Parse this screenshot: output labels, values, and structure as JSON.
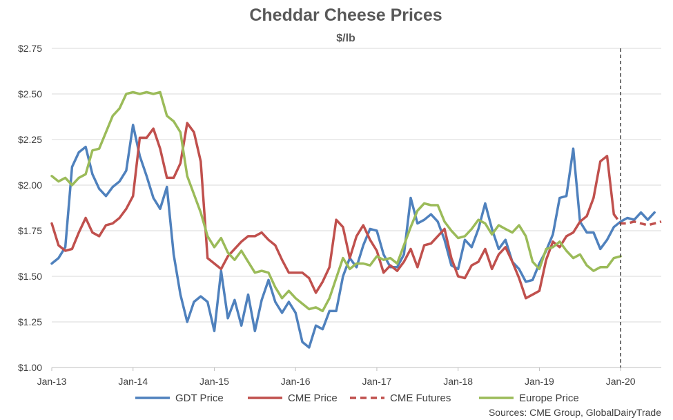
{
  "chart_data": {
    "type": "line",
    "title": "Cheddar Cheese Prices",
    "subtitle": "$/lb",
    "source": "Sources:  CME Group, GlobalDairyTrade",
    "x_tick_labels": [
      "Jan-13",
      "Jan-14",
      "Jan-15",
      "Jan-16",
      "Jan-17",
      "Jan-18",
      "Jan-19",
      "Jan-20"
    ],
    "y_tick_labels": [
      "$1.00",
      "$1.25",
      "$1.50",
      "$1.75",
      "$2.00",
      "$2.25",
      "$2.50",
      "$2.75"
    ],
    "ylim": [
      1.0,
      2.75
    ],
    "xlim": [
      "2013-01",
      "2020-07"
    ],
    "grid": "horizontal",
    "legend_position": "bottom",
    "forecast_marker": "2020-01",
    "series": [
      {
        "name": "GDT Price",
        "color": "#4f81bd",
        "style": "solid",
        "points": [
          [
            "2013-01",
            1.57
          ],
          [
            "2013-02",
            1.6
          ],
          [
            "2013-03",
            1.66
          ],
          [
            "2013-04",
            2.1
          ],
          [
            "2013-05",
            2.18
          ],
          [
            "2013-06",
            2.21
          ],
          [
            "2013-07",
            2.06
          ],
          [
            "2013-08",
            1.98
          ],
          [
            "2013-09",
            1.94
          ],
          [
            "2013-10",
            1.99
          ],
          [
            "2013-11",
            2.02
          ],
          [
            "2013-12",
            2.08
          ],
          [
            "2014-01",
            2.33
          ],
          [
            "2014-02",
            2.16
          ],
          [
            "2014-03",
            2.05
          ],
          [
            "2014-04",
            1.93
          ],
          [
            "2014-05",
            1.87
          ],
          [
            "2014-06",
            1.99
          ],
          [
            "2014-07",
            1.62
          ],
          [
            "2014-08",
            1.4
          ],
          [
            "2014-09",
            1.25
          ],
          [
            "2014-10",
            1.36
          ],
          [
            "2014-11",
            1.39
          ],
          [
            "2014-12",
            1.36
          ],
          [
            "2015-01",
            1.2
          ],
          [
            "2015-02",
            1.53
          ],
          [
            "2015-03",
            1.27
          ],
          [
            "2015-04",
            1.37
          ],
          [
            "2015-05",
            1.23
          ],
          [
            "2015-06",
            1.4
          ],
          [
            "2015-07",
            1.2
          ],
          [
            "2015-08",
            1.37
          ],
          [
            "2015-09",
            1.48
          ],
          [
            "2015-10",
            1.36
          ],
          [
            "2015-11",
            1.3
          ],
          [
            "2015-12",
            1.36
          ],
          [
            "2016-01",
            1.3
          ],
          [
            "2016-02",
            1.14
          ],
          [
            "2016-03",
            1.11
          ],
          [
            "2016-04",
            1.23
          ],
          [
            "2016-05",
            1.21
          ],
          [
            "2016-06",
            1.31
          ],
          [
            "2016-07",
            1.31
          ],
          [
            "2016-08",
            1.5
          ],
          [
            "2016-09",
            1.6
          ],
          [
            "2016-10",
            1.55
          ],
          [
            "2016-11",
            1.67
          ],
          [
            "2016-12",
            1.76
          ],
          [
            "2017-01",
            1.75
          ],
          [
            "2017-02",
            1.62
          ],
          [
            "2017-03",
            1.55
          ],
          [
            "2017-04",
            1.55
          ],
          [
            "2017-05",
            1.62
          ],
          [
            "2017-06",
            1.93
          ],
          [
            "2017-07",
            1.79
          ],
          [
            "2017-08",
            1.81
          ],
          [
            "2017-09",
            1.84
          ],
          [
            "2017-10",
            1.8
          ],
          [
            "2017-11",
            1.7
          ],
          [
            "2017-12",
            1.56
          ],
          [
            "2018-01",
            1.54
          ],
          [
            "2018-02",
            1.7
          ],
          [
            "2018-03",
            1.66
          ],
          [
            "2018-04",
            1.76
          ],
          [
            "2018-05",
            1.9
          ],
          [
            "2018-06",
            1.76
          ],
          [
            "2018-07",
            1.65
          ],
          [
            "2018-08",
            1.7
          ],
          [
            "2018-09",
            1.58
          ],
          [
            "2018-10",
            1.54
          ],
          [
            "2018-11",
            1.47
          ],
          [
            "2018-12",
            1.48
          ],
          [
            "2019-01",
            1.57
          ],
          [
            "2019-02",
            1.64
          ],
          [
            "2019-03",
            1.73
          ],
          [
            "2019-04",
            1.93
          ],
          [
            "2019-05",
            1.94
          ],
          [
            "2019-06",
            2.2
          ],
          [
            "2019-07",
            1.8
          ],
          [
            "2019-08",
            1.74
          ],
          [
            "2019-09",
            1.74
          ],
          [
            "2019-10",
            1.65
          ],
          [
            "2019-11",
            1.7
          ],
          [
            "2019-12",
            1.77
          ],
          [
            "2020-01",
            1.8
          ],
          [
            "2020-02",
            1.82
          ],
          [
            "2020-03",
            1.81
          ],
          [
            "2020-04",
            1.85
          ],
          [
            "2020-05",
            1.81
          ],
          [
            "2020-06",
            1.85
          ]
        ]
      },
      {
        "name": "CME Price",
        "color": "#c0504d",
        "style": "solid",
        "points": [
          [
            "2013-01",
            1.79
          ],
          [
            "2013-02",
            1.67
          ],
          [
            "2013-03",
            1.64
          ],
          [
            "2013-04",
            1.65
          ],
          [
            "2013-05",
            1.74
          ],
          [
            "2013-06",
            1.82
          ],
          [
            "2013-07",
            1.74
          ],
          [
            "2013-08",
            1.72
          ],
          [
            "2013-09",
            1.78
          ],
          [
            "2013-10",
            1.79
          ],
          [
            "2013-11",
            1.82
          ],
          [
            "2013-12",
            1.87
          ],
          [
            "2014-01",
            1.94
          ],
          [
            "2014-02",
            2.26
          ],
          [
            "2014-03",
            2.26
          ],
          [
            "2014-04",
            2.31
          ],
          [
            "2014-05",
            2.2
          ],
          [
            "2014-06",
            2.04
          ],
          [
            "2014-07",
            2.04
          ],
          [
            "2014-08",
            2.12
          ],
          [
            "2014-09",
            2.34
          ],
          [
            "2014-10",
            2.29
          ],
          [
            "2014-11",
            2.13
          ],
          [
            "2014-12",
            1.6
          ],
          [
            "2015-01",
            1.57
          ],
          [
            "2015-02",
            1.54
          ],
          [
            "2015-03",
            1.61
          ],
          [
            "2015-04",
            1.65
          ],
          [
            "2015-05",
            1.69
          ],
          [
            "2015-06",
            1.72
          ],
          [
            "2015-07",
            1.72
          ],
          [
            "2015-08",
            1.74
          ],
          [
            "2015-09",
            1.7
          ],
          [
            "2015-10",
            1.67
          ],
          [
            "2015-11",
            1.59
          ],
          [
            "2015-12",
            1.52
          ],
          [
            "2016-01",
            1.52
          ],
          [
            "2016-02",
            1.52
          ],
          [
            "2016-03",
            1.49
          ],
          [
            "2016-04",
            1.41
          ],
          [
            "2016-05",
            1.47
          ],
          [
            "2016-06",
            1.55
          ],
          [
            "2016-07",
            1.81
          ],
          [
            "2016-08",
            1.77
          ],
          [
            "2016-09",
            1.6
          ],
          [
            "2016-10",
            1.72
          ],
          [
            "2016-11",
            1.78
          ],
          [
            "2016-12",
            1.7
          ],
          [
            "2017-01",
            1.64
          ],
          [
            "2017-02",
            1.52
          ],
          [
            "2017-03",
            1.56
          ],
          [
            "2017-04",
            1.53
          ],
          [
            "2017-05",
            1.58
          ],
          [
            "2017-06",
            1.65
          ],
          [
            "2017-07",
            1.55
          ],
          [
            "2017-08",
            1.67
          ],
          [
            "2017-09",
            1.68
          ],
          [
            "2017-10",
            1.72
          ],
          [
            "2017-11",
            1.76
          ],
          [
            "2017-12",
            1.6
          ],
          [
            "2018-01",
            1.5
          ],
          [
            "2018-02",
            1.49
          ],
          [
            "2018-03",
            1.56
          ],
          [
            "2018-04",
            1.58
          ],
          [
            "2018-05",
            1.65
          ],
          [
            "2018-06",
            1.54
          ],
          [
            "2018-07",
            1.62
          ],
          [
            "2018-08",
            1.66
          ],
          [
            "2018-09",
            1.58
          ],
          [
            "2018-10",
            1.49
          ],
          [
            "2018-11",
            1.38
          ],
          [
            "2018-12",
            1.4
          ],
          [
            "2019-01",
            1.42
          ],
          [
            "2019-02",
            1.59
          ],
          [
            "2019-03",
            1.69
          ],
          [
            "2019-04",
            1.66
          ],
          [
            "2019-05",
            1.72
          ],
          [
            "2019-06",
            1.74
          ],
          [
            "2019-07",
            1.8
          ],
          [
            "2019-08",
            1.83
          ],
          [
            "2019-09",
            1.93
          ],
          [
            "2019-10",
            2.13
          ],
          [
            "2019-11",
            2.16
          ],
          [
            "2019-12",
            1.84
          ]
        ]
      },
      {
        "name": "CME Futures",
        "color": "#c0504d",
        "style": "dashed",
        "points": [
          [
            "2019-12",
            1.84
          ],
          [
            "2020-01",
            1.79
          ],
          [
            "2020-02",
            1.79
          ],
          [
            "2020-03",
            1.8
          ],
          [
            "2020-04",
            1.79
          ],
          [
            "2020-05",
            1.78
          ],
          [
            "2020-06",
            1.79
          ],
          [
            "2020-07",
            1.8
          ]
        ]
      },
      {
        "name": "Europe Price",
        "color": "#9bbb59",
        "style": "solid",
        "points": [
          [
            "2013-01",
            2.05
          ],
          [
            "2013-02",
            2.02
          ],
          [
            "2013-03",
            2.04
          ],
          [
            "2013-04",
            2.0
          ],
          [
            "2013-05",
            2.04
          ],
          [
            "2013-06",
            2.06
          ],
          [
            "2013-07",
            2.19
          ],
          [
            "2013-08",
            2.2
          ],
          [
            "2013-09",
            2.29
          ],
          [
            "2013-10",
            2.38
          ],
          [
            "2013-11",
            2.42
          ],
          [
            "2013-12",
            2.5
          ],
          [
            "2014-01",
            2.51
          ],
          [
            "2014-02",
            2.5
          ],
          [
            "2014-03",
            2.51
          ],
          [
            "2014-04",
            2.5
          ],
          [
            "2014-05",
            2.51
          ],
          [
            "2014-06",
            2.38
          ],
          [
            "2014-07",
            2.35
          ],
          [
            "2014-08",
            2.29
          ],
          [
            "2014-09",
            2.05
          ],
          [
            "2014-10",
            1.95
          ],
          [
            "2014-11",
            1.85
          ],
          [
            "2014-12",
            1.72
          ],
          [
            "2015-01",
            1.66
          ],
          [
            "2015-02",
            1.71
          ],
          [
            "2015-03",
            1.63
          ],
          [
            "2015-04",
            1.59
          ],
          [
            "2015-05",
            1.64
          ],
          [
            "2015-06",
            1.58
          ],
          [
            "2015-07",
            1.52
          ],
          [
            "2015-08",
            1.53
          ],
          [
            "2015-09",
            1.52
          ],
          [
            "2015-10",
            1.44
          ],
          [
            "2015-11",
            1.38
          ],
          [
            "2015-12",
            1.42
          ],
          [
            "2016-01",
            1.38
          ],
          [
            "2016-02",
            1.35
          ],
          [
            "2016-03",
            1.32
          ],
          [
            "2016-04",
            1.33
          ],
          [
            "2016-05",
            1.31
          ],
          [
            "2016-06",
            1.38
          ],
          [
            "2016-07",
            1.49
          ],
          [
            "2016-08",
            1.6
          ],
          [
            "2016-09",
            1.54
          ],
          [
            "2016-10",
            1.57
          ],
          [
            "2016-11",
            1.57
          ],
          [
            "2016-12",
            1.56
          ],
          [
            "2017-01",
            1.61
          ],
          [
            "2017-02",
            1.59
          ],
          [
            "2017-03",
            1.6
          ],
          [
            "2017-04",
            1.57
          ],
          [
            "2017-05",
            1.67
          ],
          [
            "2017-06",
            1.77
          ],
          [
            "2017-07",
            1.86
          ],
          [
            "2017-08",
            1.9
          ],
          [
            "2017-09",
            1.89
          ],
          [
            "2017-10",
            1.89
          ],
          [
            "2017-11",
            1.8
          ],
          [
            "2017-12",
            1.75
          ],
          [
            "2018-01",
            1.71
          ],
          [
            "2018-02",
            1.72
          ],
          [
            "2018-03",
            1.76
          ],
          [
            "2018-04",
            1.81
          ],
          [
            "2018-05",
            1.79
          ],
          [
            "2018-06",
            1.73
          ],
          [
            "2018-07",
            1.78
          ],
          [
            "2018-08",
            1.76
          ],
          [
            "2018-09",
            1.74
          ],
          [
            "2018-10",
            1.78
          ],
          [
            "2018-11",
            1.72
          ],
          [
            "2018-12",
            1.58
          ],
          [
            "2019-01",
            1.54
          ],
          [
            "2019-02",
            1.65
          ],
          [
            "2019-03",
            1.66
          ],
          [
            "2019-04",
            1.69
          ],
          [
            "2019-05",
            1.64
          ],
          [
            "2019-06",
            1.6
          ],
          [
            "2019-07",
            1.62
          ],
          [
            "2019-08",
            1.56
          ],
          [
            "2019-09",
            1.53
          ],
          [
            "2019-10",
            1.55
          ],
          [
            "2019-11",
            1.55
          ],
          [
            "2019-12",
            1.6
          ],
          [
            "2020-01",
            1.61
          ]
        ]
      }
    ]
  }
}
